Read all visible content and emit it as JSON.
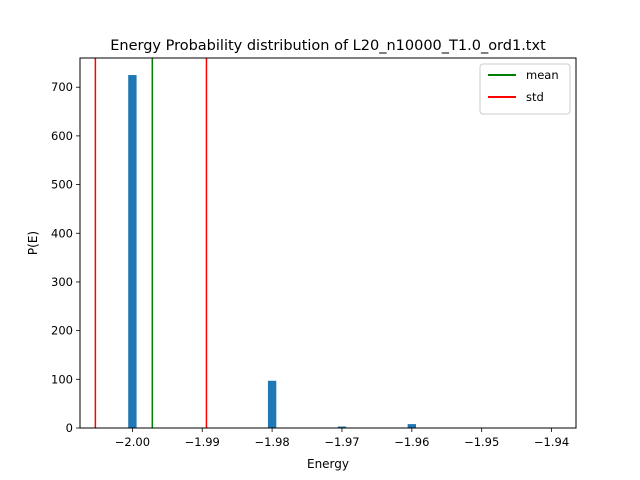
{
  "chart_data": {
    "type": "bar",
    "title": "Energy Probability distribution of L20_n10000_T1.0_ord1.txt",
    "xlabel": "Energy",
    "ylabel": "P(E)",
    "xlim": [
      -2.0075,
      -1.9365
    ],
    "ylim": [
      0,
      760
    ],
    "x_ticks": [
      -2.0,
      -1.99,
      -1.98,
      -1.97,
      -1.96,
      -1.95,
      -1.94
    ],
    "x_tick_labels": [
      "−2.00",
      "−1.99",
      "−1.98",
      "−1.97",
      "−1.96",
      "−1.95",
      "−1.94"
    ],
    "y_ticks": [
      0,
      100,
      200,
      300,
      400,
      500,
      600,
      700
    ],
    "y_tick_labels": [
      "0",
      "100",
      "200",
      "300",
      "400",
      "500",
      "600",
      "700"
    ],
    "bar_width": 0.0012,
    "bar_color": "#1f77b4",
    "bars": [
      {
        "x": -2.0,
        "value": 725
      },
      {
        "x": -1.98,
        "value": 97
      },
      {
        "x": -1.97,
        "value": 3
      },
      {
        "x": -1.96,
        "value": 8
      }
    ],
    "lines": [
      {
        "x": -1.99715,
        "color": "#008000",
        "legend": "mean"
      },
      {
        "x": -2.0053,
        "color": "#ff0000",
        "legend": "std"
      },
      {
        "x": -1.9894,
        "color": "#ff0000",
        "legend": ""
      }
    ],
    "legend": {
      "position": "top-right",
      "entries": [
        {
          "label": "mean",
          "color": "#008000"
        },
        {
          "label": "std",
          "color": "#ff0000"
        }
      ]
    },
    "grid": false
  }
}
